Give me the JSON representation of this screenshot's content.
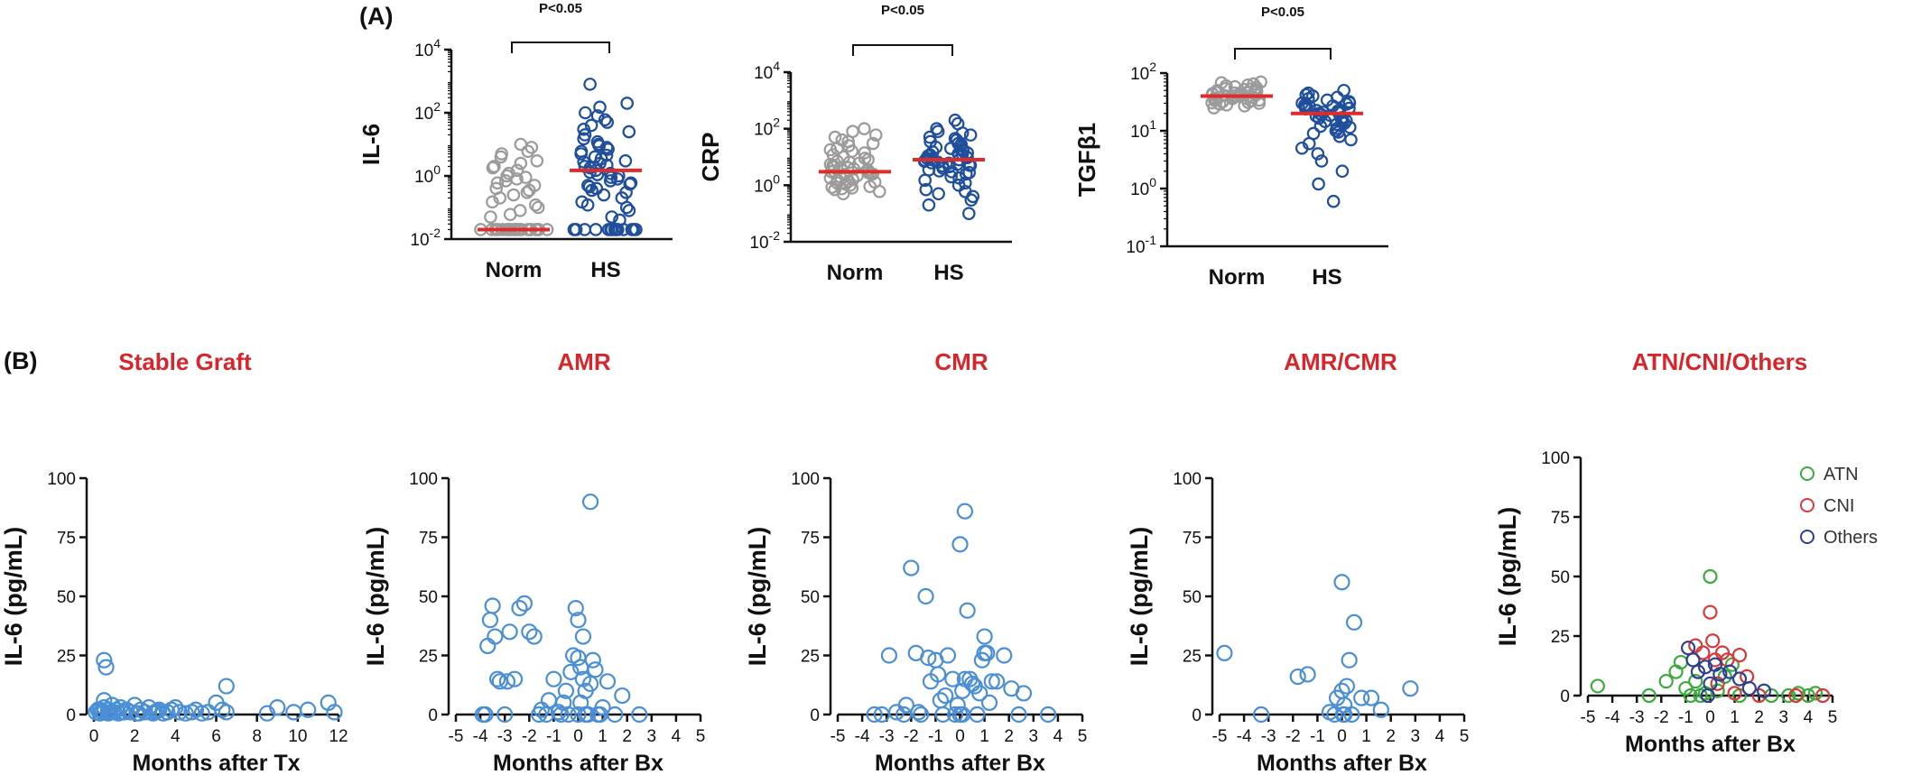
{
  "panels": {
    "a_label": "(A)",
    "b_label": "(B)"
  },
  "colors": {
    "norm": "#9b9b9b",
    "hs": "#1f4e9c",
    "median": "#e02b2b",
    "scatter": "#4a8fd6",
    "atn": "#3caa3c",
    "cni": "#d63a3a",
    "others": "#2f3f8f",
    "subtitle": "#d7262b"
  },
  "chart_data": [
    {
      "type": "scatter",
      "panel": "A1",
      "ylabel": "IL-6",
      "log_scale": true,
      "ylim": [
        0.01,
        10000
      ],
      "yticks": [
        "10^-2",
        "10^0",
        "10^2",
        "10^4"
      ],
      "categories": [
        "Norm",
        "HS"
      ],
      "annotation": "P<0.05",
      "medians": [
        0.02,
        1.5
      ],
      "series": [
        {
          "values": [
            0.02,
            0.02,
            0.02,
            0.02,
            0.02,
            0.02,
            0.02,
            0.02,
            0.02,
            0.02,
            0.02,
            0.02,
            0.02,
            0.02,
            0.02,
            0.02,
            0.02,
            0.02,
            0.02,
            0.02,
            0.02,
            0.02,
            0.05,
            0.08,
            0.12,
            0.2,
            0.3,
            0.4,
            0.5,
            0.6,
            0.7,
            0.8,
            1.0,
            1.2,
            1.5,
            2,
            2.5,
            3,
            4,
            5,
            6,
            8,
            10,
            0.15,
            0.25,
            0.35,
            0.9,
            1.8,
            0.06,
            0.1
          ]
        },
        {
          "values": [
            0.02,
            0.02,
            0.02,
            0.02,
            0.02,
            0.02,
            0.02,
            0.02,
            0.02,
            0.02,
            0.02,
            0.02,
            0.02,
            0.02,
            0.05,
            0.08,
            0.1,
            0.15,
            0.2,
            0.3,
            0.4,
            0.5,
            0.6,
            0.7,
            0.8,
            0.9,
            1,
            1.2,
            1.5,
            1.8,
            2,
            2.5,
            3,
            3.5,
            4,
            5,
            6,
            7,
            8,
            10,
            12,
            15,
            20,
            25,
            30,
            40,
            50,
            60,
            80,
            100,
            150,
            200,
            0.25,
            0.35,
            0.45,
            0.55,
            1.1,
            1.3,
            2.2,
            2.8,
            4.5,
            9,
            0.12,
            0.04,
            800
          ]
        }
      ]
    },
    {
      "type": "scatter",
      "panel": "A2",
      "ylabel": "CRP",
      "log_scale": true,
      "ylim": [
        0.01,
        10000
      ],
      "yticks": [
        "10^-2",
        "10^0",
        "10^2",
        "10^4"
      ],
      "categories": [
        "Norm",
        "HS"
      ],
      "annotation": "P<0.05",
      "medians": [
        3,
        8
      ],
      "series": [
        {
          "values": [
            0.5,
            0.6,
            0.7,
            0.8,
            0.9,
            1,
            1.1,
            1.2,
            1.4,
            1.6,
            1.8,
            2,
            2.2,
            2.5,
            2.8,
            3,
            3.2,
            3.5,
            3.8,
            4,
            4.5,
            5,
            5.5,
            6,
            7,
            8,
            9,
            10,
            12,
            14,
            16,
            18,
            20,
            25,
            30,
            35,
            40,
            50,
            60,
            80,
            100,
            1.3,
            1.5,
            2.4,
            2.6,
            3.3,
            4.2,
            6.5,
            0.75,
            0.85
          ]
        },
        {
          "values": [
            0.1,
            0.2,
            0.3,
            0.5,
            0.7,
            1,
            1.2,
            1.5,
            2,
            2.5,
            3,
            3.5,
            4,
            4.5,
            5,
            5.5,
            6,
            6.5,
            7,
            7.5,
            8,
            8.5,
            9,
            10,
            11,
            12,
            13,
            14,
            15,
            16,
            18,
            20,
            22,
            25,
            28,
            30,
            35,
            40,
            45,
            50,
            60,
            70,
            80,
            100,
            150,
            200,
            3.2,
            4.8,
            6.2,
            9.5,
            2.8,
            5.2,
            7.8,
            12.5,
            0.4,
            0.6,
            1.8
          ]
        }
      ]
    },
    {
      "type": "scatter",
      "panel": "A3",
      "ylabel": "TGFβ1",
      "log_scale": true,
      "ylim": [
        0.1,
        100
      ],
      "yticks": [
        "10^-1",
        "10^0",
        "10^1",
        "10^2"
      ],
      "categories": [
        "Norm",
        "HS"
      ],
      "annotation": "P<0.05",
      "medians": [
        40,
        20
      ],
      "series": [
        {
          "values": [
            25,
            27,
            28,
            29,
            30,
            31,
            32,
            33,
            34,
            35,
            36,
            37,
            38,
            39,
            40,
            41,
            42,
            43,
            44,
            45,
            46,
            47,
            48,
            50,
            52,
            54,
            56,
            58,
            60,
            62,
            65,
            68,
            70,
            30.5,
            33.5,
            36.5,
            39.5,
            42.5,
            45.5,
            48.5,
            51,
            53
          ]
        },
        {
          "values": [
            0.6,
            1.2,
            2,
            3,
            4,
            5,
            6,
            7,
            8,
            9,
            10,
            11,
            12,
            13,
            14,
            15,
            16,
            17,
            18,
            19,
            20,
            21,
            22,
            23,
            24,
            25,
            26,
            27,
            28,
            29,
            30,
            32,
            34,
            36,
            38,
            40,
            42,
            45,
            50,
            14.5,
            16.5,
            18.5,
            20.5,
            22.5,
            24.5,
            26.5,
            9.5,
            11.5,
            13.5,
            30.5
          ]
        }
      ]
    },
    {
      "type": "scatter",
      "panel": "B1",
      "title": "Stable Graft",
      "xlabel": "Months after Tx",
      "ylabel": "IL-6 (pg/mL)",
      "xlim": [
        0,
        12
      ],
      "ylim": [
        0,
        100
      ],
      "xticks": [
        0,
        2,
        4,
        6,
        8,
        10,
        12
      ],
      "yticks": [
        0,
        25,
        50,
        75,
        100
      ],
      "x": [
        0.1,
        0.2,
        0.3,
        0.4,
        0.5,
        0.5,
        0.6,
        0.7,
        0.8,
        0.9,
        1,
        1.1,
        1.2,
        1.3,
        1.5,
        1.6,
        1.8,
        2,
        2.1,
        2.3,
        2.5,
        2.7,
        2.9,
        3,
        3.2,
        3.4,
        3.6,
        3.8,
        4,
        4.2,
        4.5,
        4.8,
        5,
        5.3,
        5.6,
        6,
        6.3,
        6.5,
        6.5,
        8.5,
        9,
        9.8,
        10.5,
        11.5,
        11.8,
        0.5,
        0.5,
        0.3,
        0.7,
        1.4,
        2.2,
        3.1
      ],
      "y": [
        1,
        2,
        0.5,
        1.5,
        3,
        23,
        20,
        2,
        1,
        4,
        1,
        2,
        0.5,
        3,
        1,
        2,
        1,
        4,
        0.5,
        2,
        1,
        3,
        0.5,
        1,
        2,
        0.5,
        1,
        2,
        3,
        1,
        0.5,
        1,
        2,
        0.5,
        1,
        5,
        2,
        12,
        1,
        0.5,
        3,
        1,
        2,
        5,
        1,
        6,
        1,
        2,
        0.5,
        1,
        0.5,
        1.5
      ]
    },
    {
      "type": "scatter",
      "panel": "B2",
      "title": "AMR",
      "xlabel": "Months after Bx",
      "ylabel": "IL-6 (pg/mL)",
      "xlim": [
        -5,
        5
      ],
      "ylim": [
        0,
        100
      ],
      "xticks": [
        -5,
        -4,
        -3,
        -2,
        -1,
        0,
        1,
        2,
        3,
        4,
        5
      ],
      "yticks": [
        0,
        25,
        50,
        75,
        100
      ],
      "x": [
        -3.8,
        -3.7,
        -3.6,
        -3.5,
        -3.3,
        -3.2,
        -3.0,
        -2.8,
        -2.6,
        -2.4,
        -2.2,
        -2.0,
        -1.8,
        -1.6,
        -1.5,
        -1.3,
        -1.2,
        -1.0,
        -0.8,
        -0.6,
        -0.5,
        -0.4,
        -0.3,
        -0.2,
        -0.1,
        0,
        0,
        0,
        0.1,
        0.1,
        0.2,
        0.2,
        0.3,
        0.3,
        0.4,
        0.5,
        0.5,
        0.6,
        0.7,
        0.8,
        1,
        1.2,
        1.5,
        1.8,
        2.5,
        -3.9,
        -3.4,
        -2.9,
        -0.7,
        0.9
      ],
      "y": [
        0,
        29,
        40,
        46,
        15,
        14,
        0,
        35,
        15,
        45,
        47,
        35,
        33,
        0,
        2,
        0,
        6,
        15,
        1,
        5,
        10,
        0,
        18,
        25,
        45,
        40,
        24,
        0,
        20,
        5,
        15,
        33,
        0,
        10,
        0,
        90,
        13,
        23,
        19,
        0,
        3,
        14,
        0,
        8,
        0,
        0,
        33,
        14,
        0,
        0
      ]
    },
    {
      "type": "scatter",
      "panel": "B3",
      "title": "CMR",
      "xlabel": "Months after Bx",
      "ylabel": "IL-6 (pg/mL)",
      "xlim": [
        -5,
        5
      ],
      "ylim": [
        0,
        100
      ],
      "xticks": [
        -5,
        -4,
        -3,
        -2,
        -1,
        0,
        1,
        2,
        3,
        4,
        5
      ],
      "yticks": [
        0,
        25,
        50,
        75,
        100
      ],
      "x": [
        -3.5,
        -3.2,
        -2.9,
        -2.6,
        -2.3,
        -2.2,
        -2.0,
        -1.8,
        -1.6,
        -1.4,
        -1.3,
        -1.2,
        -1.0,
        -0.8,
        -0.7,
        -0.5,
        -0.3,
        -0.2,
        -0.1,
        0,
        0,
        0.1,
        0.1,
        0.2,
        0.3,
        0.4,
        0.5,
        0.6,
        0.8,
        0.9,
        1,
        1,
        1.1,
        1.2,
        1.3,
        1.5,
        1.8,
        2.1,
        2.4,
        2.6,
        3.6,
        -1.7,
        -0.6,
        0.2,
        0.7,
        -0.9
      ],
      "y": [
        0,
        0,
        25,
        1,
        0,
        4,
        62,
        26,
        0,
        50,
        24,
        14,
        23,
        6,
        0,
        25,
        15,
        0,
        4,
        72,
        0,
        0,
        10,
        86,
        44,
        15,
        13,
        12,
        9,
        23,
        26,
        33,
        26,
        5,
        14,
        14,
        25,
        11,
        0,
        9,
        0,
        1,
        8,
        15,
        0,
        17
      ]
    },
    {
      "type": "scatter",
      "panel": "B4",
      "title": "AMR/CMR",
      "xlabel": "Months after Bx",
      "ylabel": "IL-6 (pg/mL)",
      "xlim": [
        -5,
        5
      ],
      "ylim": [
        0,
        100
      ],
      "xticks": [
        -5,
        -4,
        -3,
        -2,
        -1,
        0,
        1,
        2,
        3,
        4,
        5
      ],
      "yticks": [
        0,
        25,
        50,
        75,
        100
      ],
      "x": [
        -4.8,
        -3.3,
        -1.8,
        -1.4,
        -0.5,
        -0.2,
        0,
        0,
        0.1,
        0.1,
        0.2,
        0.3,
        0.4,
        0.5,
        0.8,
        1.2,
        1.6,
        2.8,
        -0.3,
        0.05
      ],
      "y": [
        26,
        0,
        16,
        17,
        1,
        7,
        56,
        10,
        4,
        0,
        12,
        23,
        0,
        39,
        7,
        7,
        2,
        11,
        0,
        0
      ]
    },
    {
      "type": "scatter",
      "panel": "B5",
      "title": "ATN/CNI/Others",
      "xlabel": "Months after Bx",
      "ylabel": "IL-6 (pg/mL)",
      "xlim": [
        -5,
        5
      ],
      "ylim": [
        0,
        100
      ],
      "xticks": [
        -5,
        -4,
        -3,
        -2,
        -1,
        0,
        1,
        2,
        3,
        4,
        5
      ],
      "yticks": [
        0,
        25,
        50,
        75,
        100
      ],
      "legend": "top-right",
      "series": [
        {
          "name": "ATN",
          "x": [
            -4.6,
            -2.5,
            -1.8,
            -1.4,
            -1.2,
            -1.0,
            -0.6,
            -0.4,
            -0.2,
            0,
            0.3,
            0.6,
            0.9,
            1.2,
            2.5,
            3.2,
            3.6,
            4.0,
            4.3,
            -0.8
          ],
          "y": [
            4,
            0,
            6,
            10,
            14,
            3,
            6,
            0,
            1,
            50,
            2,
            8,
            13,
            0,
            0,
            0,
            1,
            0,
            1,
            0
          ]
        },
        {
          "name": "CNI",
          "x": [
            -0.6,
            -0.3,
            0,
            0.1,
            0.2,
            0.3,
            0.5,
            0.7,
            1.0,
            1.2,
            1.5,
            2.0,
            3.5,
            4.6
          ],
          "y": [
            21,
            18,
            35,
            23,
            15,
            5,
            18,
            15,
            1,
            17,
            8,
            0,
            0,
            0
          ]
        },
        {
          "name": "Others",
          "x": [
            -0.9,
            -0.7,
            -0.5,
            -0.2,
            0,
            0.2,
            0.4,
            0.8,
            1.2,
            1.6,
            2.2,
            -0.1
          ],
          "y": [
            20,
            15,
            10,
            12,
            5,
            13,
            9,
            10,
            7,
            3,
            2,
            0
          ]
        }
      ]
    }
  ]
}
